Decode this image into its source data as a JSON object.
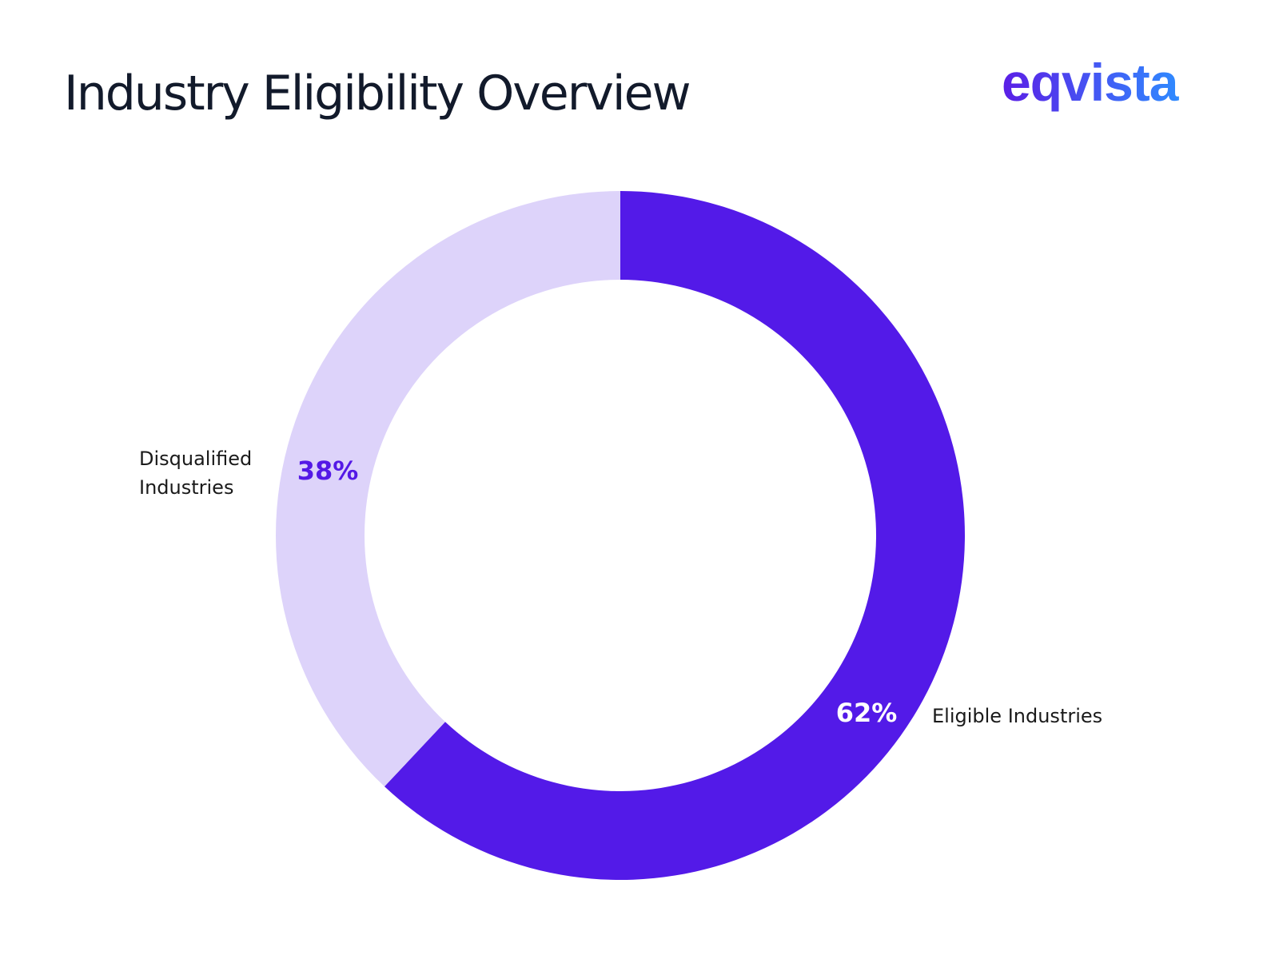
{
  "brand": {
    "logo_text": "eqvista",
    "gradient_start": "#5b1ee6",
    "gradient_end": "#2f8bff"
  },
  "chart_data": {
    "type": "pie",
    "variant": "donut",
    "title": "Industry Eligibility Overview",
    "slices": [
      {
        "label": "Eligible Industries",
        "label_lines": [
          "Eligible Industries"
        ],
        "value": 62,
        "display": "62%",
        "color": "#531ae8",
        "value_color": "#ffffff"
      },
      {
        "label": "Disqualified Industries",
        "label_lines": [
          "Disqualified",
          "Industries"
        ],
        "value": 38,
        "display": "38%",
        "color": "#ddd3fa",
        "value_color": "#5419e6"
      }
    ],
    "start_angle_deg": 0,
    "direction": "clockwise"
  }
}
